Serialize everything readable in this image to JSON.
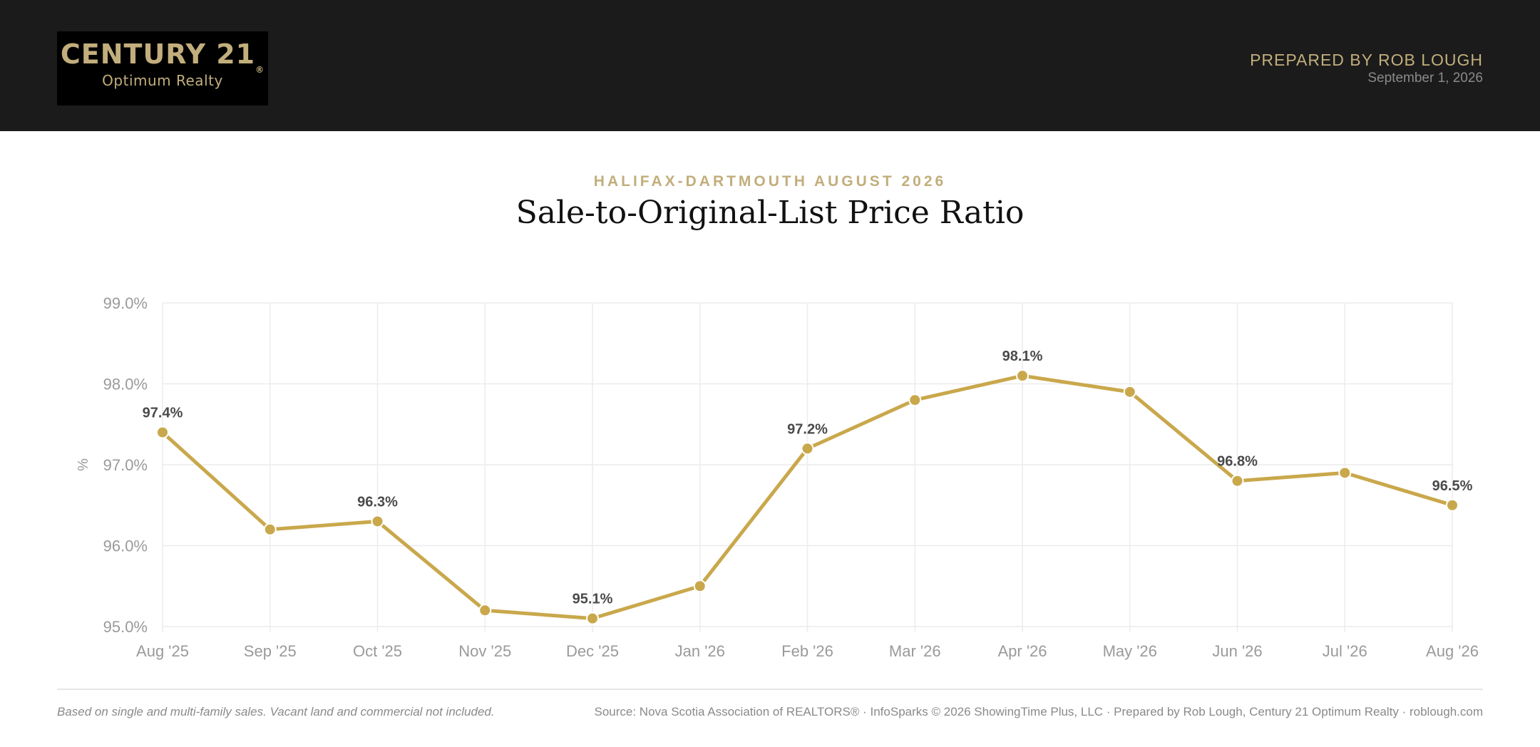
{
  "header": {
    "logo_main": "CENTURY 21",
    "logo_mark": "®",
    "logo_sub": "Optimum Realty",
    "prepared_by": "PREPARED BY ROB LOUGH",
    "date": "September 1, 2026"
  },
  "kicker": "HALIFAX-DARTMOUTH AUGUST 2026",
  "title": "Sale-to-Original-List Price Ratio",
  "footer": {
    "note": "Based on single and multi-family sales. Vacant land and commercial not included.",
    "source": "Source: Nova Scotia Association of REALTORS® · InfoSparks © 2026 ShowingTime Plus, LLC · Prepared by Rob Lough, Century 21 Optimum Realty · roblough.com"
  },
  "chart_data": {
    "type": "line",
    "categories": [
      "Aug '25",
      "Sep '25",
      "Oct '25",
      "Nov '25",
      "Dec '25",
      "Jan '26",
      "Feb '26",
      "Mar '26",
      "Apr '26",
      "May '26",
      "Jun '26",
      "Jul '26",
      "Aug '26"
    ],
    "series": [
      {
        "values": [
          97.4,
          96.2,
          96.3,
          95.2,
          95.1,
          95.5,
          97.2,
          97.8,
          98.1,
          97.9,
          96.8,
          96.9,
          96.5
        ]
      }
    ],
    "data_labels": [
      {
        "index": 0,
        "text": "97.4%"
      },
      {
        "index": 2,
        "text": "96.3%"
      },
      {
        "index": 4,
        "text": "95.1%"
      },
      {
        "index": 6,
        "text": "97.2%"
      },
      {
        "index": 8,
        "text": "98.1%"
      },
      {
        "index": 10,
        "text": "96.8%"
      },
      {
        "index": 12,
        "text": "96.5%"
      }
    ],
    "y_ticks": [
      "95.0%",
      "96.0%",
      "97.0%",
      "98.0%",
      "99.0%"
    ],
    "ylim": [
      95,
      99
    ],
    "ylabel": "%",
    "xlabel": "",
    "grid": true,
    "line_color": "#c9a84c",
    "grid_color": "#ececec",
    "tick_color": "#9a9a9a",
    "label_color": "#4a4a4a"
  }
}
